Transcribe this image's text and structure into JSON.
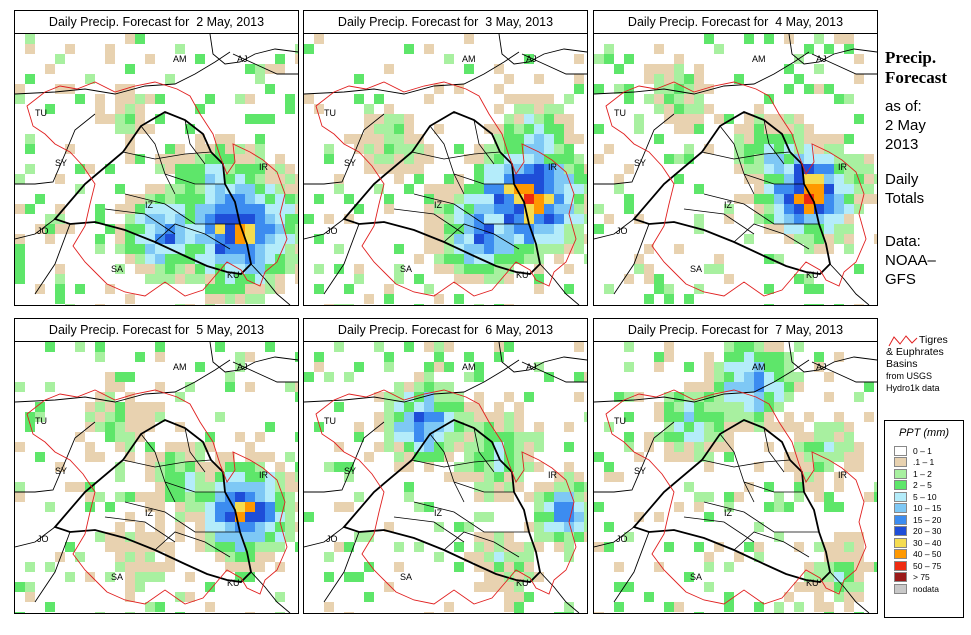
{
  "panels": [
    {
      "title": "Daily Precip. Forecast for  2 May, 2013"
    },
    {
      "title": "Daily Precip. Forecast for  3 May, 2013"
    },
    {
      "title": "Daily Precip. Forecast for  4 May, 2013"
    },
    {
      "title": "Daily Precip. Forecast for  5 May, 2013"
    },
    {
      "title": "Daily Precip. Forecast for  6 May, 2013"
    },
    {
      "title": "Daily Precip. Forecast for  7 May, 2013"
    }
  ],
  "map_labels": {
    "am": "AM",
    "aj": "AJ",
    "tu": "TU",
    "sy": "SY",
    "ir": "IR",
    "iz": "IZ",
    "jo": "JO",
    "sa": "SA",
    "ku": "KU"
  },
  "sidebar": {
    "title_line1": "Precip.",
    "title_line2": "Forecast",
    "asof_line1": "as of:",
    "asof_line2": "2 May",
    "asof_line3": "2013",
    "daily_line1": "Daily",
    "daily_line2": "Totals",
    "data_line1": "Data:",
    "data_line2": "NOAA–",
    "data_line3": "GFS"
  },
  "basin_note": {
    "line1": "Tigres",
    "line2": "& Euphrates",
    "line3": "Basins",
    "line4": "from USGS",
    "line5": "Hydro1k data",
    "color": "#e02020"
  },
  "legend": {
    "title": "PPT (mm)",
    "items": [
      {
        "label": "0 – 1",
        "color": "#ffffff"
      },
      {
        "label": ".1 – 1",
        "color": "#e8d2b0"
      },
      {
        "label": "1 – 2",
        "color": "#a8f0a0"
      },
      {
        "label": "2 – 5",
        "color": "#5ee66a"
      },
      {
        "label": "5 – 10",
        "color": "#b4ecfa"
      },
      {
        "label": "10 – 15",
        "color": "#7ec8f5"
      },
      {
        "label": "15 – 20",
        "color": "#3c8cf0"
      },
      {
        "label": "20 – 30",
        "color": "#1e4ed8"
      },
      {
        "label": "30 – 40",
        "color": "#f5dc50"
      },
      {
        "label": "40 – 50",
        "color": "#ff9800"
      },
      {
        "label": "50 – 75",
        "color": "#ee2a10"
      },
      {
        "label": "> 75",
        "color": "#9a1a1a"
      },
      {
        "label": "nodata",
        "color": "#c8c8c8"
      }
    ]
  }
}
